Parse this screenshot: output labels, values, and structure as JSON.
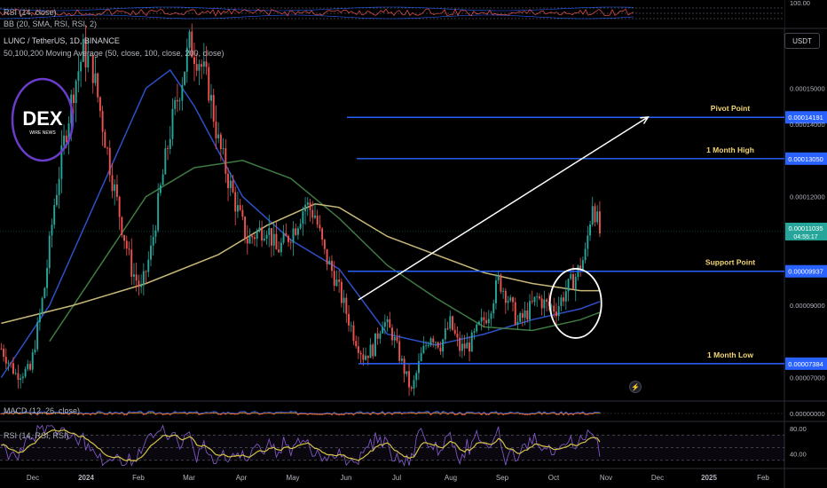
{
  "header": {
    "symbol_line": "LUNC / TetherUS, 1D, BINANCE",
    "ma_line": "50,100,200 Moving Average (50, close, 100, close, 200, close)",
    "rsi_top": "RSI (14, close)",
    "bb_top": "BB (20, SMA, RSI, RSI, 2)"
  },
  "currency_button": "USDT",
  "logo": {
    "text": "DEX",
    "subtext": "WIRE NEWS"
  },
  "colors": {
    "background": "#000000",
    "bull": "#26a69a",
    "bear": "#ef5350",
    "level_line": "#2962ff",
    "annotation_text": "#f2d675",
    "ma50": "#2d50c8",
    "ma100": "#3f7a43",
    "ma200": "#c8b878",
    "rsi_line": "#7e57c2",
    "rsi_ma": "#d4c246"
  },
  "chart_data": [
    {
      "type": "candlestick",
      "title": "LUNC / TetherUS, 1D, BINANCE",
      "x_axis": {
        "tick_labels": [
          "Dec",
          "2024",
          "Feb",
          "Mar",
          "Apr",
          "May",
          "Jun",
          "Jul",
          "Aug",
          "Sep",
          "Oct",
          "Nov",
          "Dec",
          "2025",
          "Feb"
        ]
      },
      "y_axis": {
        "scale": "linear",
        "range": [
          6.4e-05,
          0.000166
        ],
        "tick_labels": [
          "0.00015000",
          "0.00014000",
          "0.00012000",
          "0.00009000",
          "0.00007000"
        ],
        "tick_values": [
          0.00015,
          0.00014,
          0.00012,
          9e-05,
          7e-05
        ]
      },
      "last_price": {
        "value": "0.00011035",
        "countdown": "04:55:17"
      },
      "price_path": [
        [
          0,
          7.8e-05
        ],
        [
          6,
          7.1e-05
        ],
        [
          12,
          7.2e-05
        ],
        [
          18,
          9.5e-05
        ],
        [
          22,
          0.000118
        ],
        [
          26,
          0.000135
        ],
        [
          30,
          0.00015
        ],
        [
          34,
          0.00016
        ],
        [
          38,
          0.000155
        ],
        [
          42,
          0.00014
        ],
        [
          46,
          0.000125
        ],
        [
          50,
          0.000112
        ],
        [
          54,
          0.0001
        ],
        [
          58,
          9.4e-05
        ],
        [
          62,
          0.000105
        ],
        [
          66,
          0.000122
        ],
        [
          70,
          0.000138
        ],
        [
          74,
          0.00015
        ],
        [
          78,
          0.000162
        ],
        [
          82,
          0.000158
        ],
        [
          86,
          0.00015
        ],
        [
          90,
          0.000135
        ],
        [
          94,
          0.000125
        ],
        [
          98,
          0.000116
        ],
        [
          102,
          0.000108
        ],
        [
          106,
          0.00011
        ],
        [
          110,
          0.000112
        ],
        [
          114,
          0.000105
        ],
        [
          118,
          0.000108
        ],
        [
          122,
          0.000112
        ],
        [
          126,
          0.000118
        ],
        [
          130,
          0.000115
        ],
        [
          134,
          0.000104
        ],
        [
          138,
          9.8e-05
        ],
        [
          142,
          9e-05
        ],
        [
          146,
          8.2e-05
        ],
        [
          150,
          7.6e-05
        ],
        [
          154,
          7.8e-05
        ],
        [
          158,
          8.6e-05
        ],
        [
          162,
          8.2e-05
        ],
        [
          166,
          7.4e-05
        ],
        [
          170,
          6.6e-05
        ],
        [
          174,
          7.6e-05
        ],
        [
          178,
          8.2e-05
        ],
        [
          182,
          7.9e-05
        ],
        [
          186,
          8.5e-05
        ],
        [
          190,
          7.8e-05
        ],
        [
          194,
          7.9e-05
        ],
        [
          198,
          8.4e-05
        ],
        [
          202,
          8.8e-05
        ],
        [
          206,
          9.7e-05
        ],
        [
          210,
          9.2e-05
        ],
        [
          214,
          8.5e-05
        ],
        [
          218,
          8.8e-05
        ],
        [
          222,
          9.2e-05
        ],
        [
          226,
          9e-05
        ],
        [
          230,
          8.9e-05
        ],
        [
          234,
          9.4e-05
        ],
        [
          238,
          9.8e-05
        ],
        [
          242,
          0.000104
        ],
        [
          245,
          0.000119
        ],
        [
          248,
          0.00011
        ]
      ],
      "moving_averages": [
        {
          "name": "MA 50",
          "color": "#2d50c8",
          "points": [
            [
              0,
              7e-05
            ],
            [
              20,
              9e-05
            ],
            [
              40,
              0.00012
            ],
            [
              60,
              0.00015
            ],
            [
              70,
              0.000155
            ],
            [
              80,
              0.000145
            ],
            [
              100,
              0.00012
            ],
            [
              120,
              0.000108
            ],
            [
              140,
              0.0001
            ],
            [
              160,
              8.2e-05
            ],
            [
              180,
              7.9e-05
            ],
            [
              200,
              8.2e-05
            ],
            [
              220,
              8.6e-05
            ],
            [
              240,
              8.9e-05
            ],
            [
              248,
              9.1e-05
            ]
          ]
        },
        {
          "name": "MA 100",
          "color": "#3f7a43",
          "points": [
            [
              20,
              8e-05
            ],
            [
              40,
              0.0001
            ],
            [
              60,
              0.00012
            ],
            [
              80,
              0.000128
            ],
            [
              100,
              0.00013
            ],
            [
              120,
              0.000125
            ],
            [
              140,
              0.000114
            ],
            [
              160,
              0.000101
            ],
            [
              180,
              9.2e-05
            ],
            [
              200,
              8.4e-05
            ],
            [
              220,
              8.3e-05
            ],
            [
              240,
              8.6e-05
            ],
            [
              248,
              8.8e-05
            ]
          ]
        },
        {
          "name": "MA 200",
          "color": "#c8b878",
          "points": [
            [
              0,
              8.5e-05
            ],
            [
              30,
              9e-05
            ],
            [
              60,
              9.6e-05
            ],
            [
              90,
              0.000104
            ],
            [
              110,
              0.000112
            ],
            [
              130,
              0.000118
            ],
            [
              140,
              0.000117
            ],
            [
              160,
              0.000109
            ],
            [
              180,
              0.000104
            ],
            [
              200,
              9.9e-05
            ],
            [
              220,
              9.6e-05
            ],
            [
              240,
              9.4e-05
            ],
            [
              248,
              9.4e-05
            ]
          ]
        }
      ],
      "levels": [
        {
          "label": "Pivot Point",
          "value": "0.00014191",
          "y": 0.00014191
        },
        {
          "label": "1 Month High",
          "value": "0.00013050",
          "y": 0.0001305
        },
        {
          "label": "Support Point",
          "value": "0.00009937",
          "y": 9.937e-05
        },
        {
          "label": "1 Month Low",
          "value": "0.00007384",
          "y": 7.384e-05
        }
      ],
      "trend_arrow": {
        "from": [
          148,
          9.15e-05
        ],
        "to": [
          268,
          0.000142
        ]
      },
      "highlight_circle": {
        "center": [
          238,
          9.05e-05
        ]
      }
    },
    {
      "type": "line",
      "title": "MACD (12, 26, close)",
      "y_axis": {
        "tick_labels": [
          "0.00000000"
        ]
      }
    },
    {
      "type": "line",
      "title": "RSI (14, RSI, RSI)",
      "y_axis": {
        "tick_labels": [
          "80.00",
          "40.00"
        ],
        "range": [
          20,
          90
        ]
      },
      "series": [
        {
          "color": "#7e57c2"
        },
        {
          "color": "#d4c246"
        }
      ]
    },
    {
      "type": "line",
      "title": "RSI (14, close)",
      "y_axis": {
        "tick_labels": [
          "100.00"
        ]
      }
    }
  ]
}
